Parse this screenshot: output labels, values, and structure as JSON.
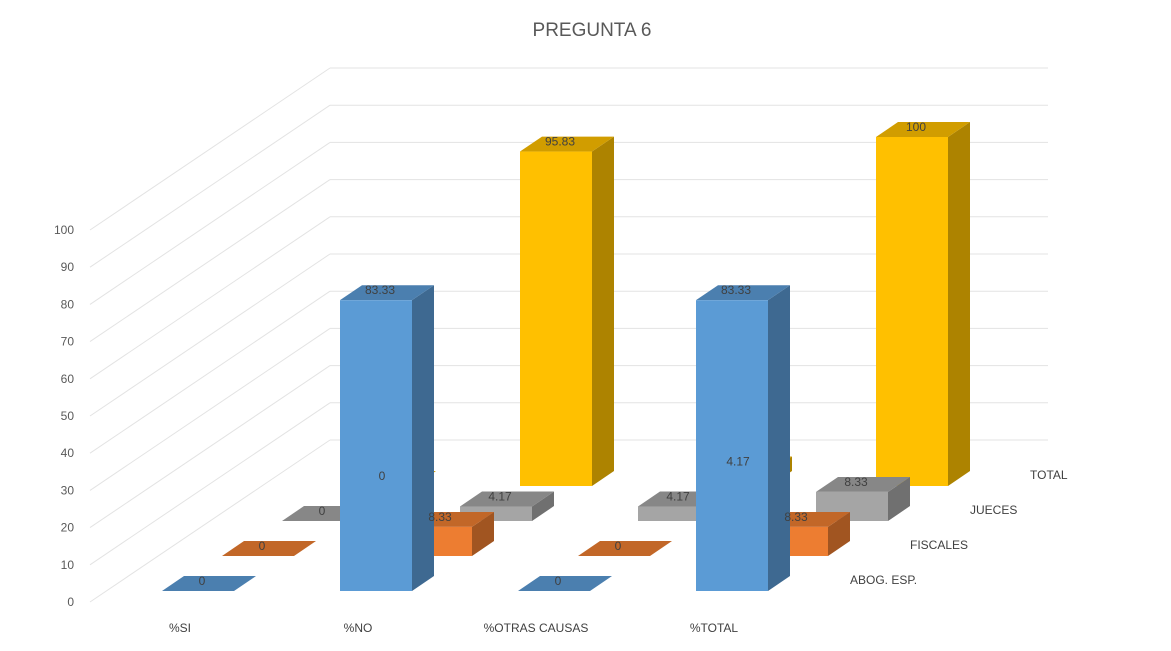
{
  "chart_data": {
    "type": "bar",
    "title": "PREGUNTA  6",
    "categories": [
      "%SI",
      "%NO",
      "%OTRAS CAUSAS",
      "%TOTAL"
    ],
    "series": [
      {
        "name": "ABOG. ESP.",
        "values": [
          0,
          83.33,
          0,
          83.33
        ],
        "labels": [
          "0",
          "83.33",
          "0",
          "83.33"
        ]
      },
      {
        "name": "FISCALES",
        "values": [
          0,
          8.33,
          0,
          8.33
        ],
        "labels": [
          "0",
          "8.33",
          "0",
          "8.33"
        ]
      },
      {
        "name": "JUECES",
        "values": [
          0,
          4.17,
          4.17,
          8.33
        ],
        "labels": [
          "0",
          "4.17",
          "4.17",
          "8.33"
        ]
      },
      {
        "name": "TOTAL",
        "values": [
          0,
          95.83,
          4.17,
          100
        ],
        "labels": [
          "0",
          "95.83",
          "4.17",
          "100"
        ]
      }
    ],
    "y_ticks": [
      "0",
      "10",
      "20",
      "30",
      "40",
      "50",
      "60",
      "70",
      "80",
      "90",
      "100"
    ],
    "ylim": [
      0,
      100
    ],
    "grid": true,
    "colors": {
      "ABOG. ESP.": "#5b9bd5",
      "FISCALES": "#ed7d31",
      "JUECES": "#a5a5a5",
      "TOTAL": "#ffc000"
    }
  }
}
